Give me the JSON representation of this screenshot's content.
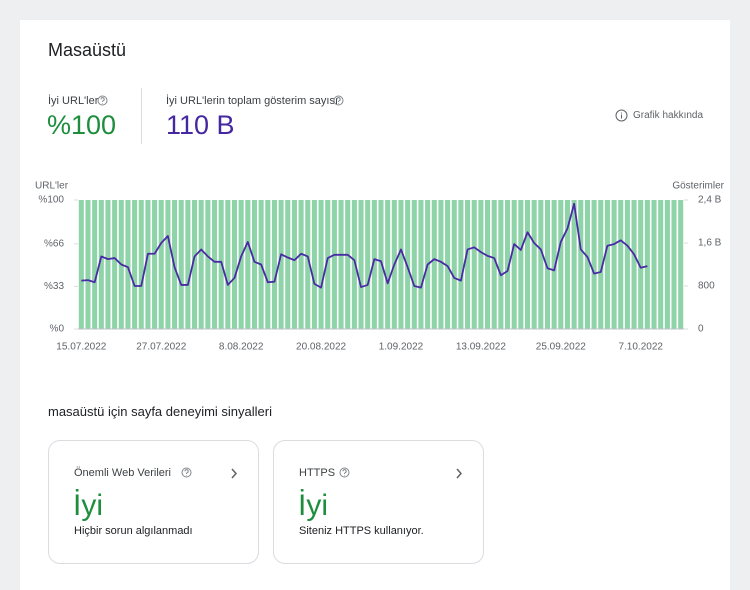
{
  "header": {
    "title": "Masaüstü"
  },
  "metrics": [
    {
      "label": "İyi URL'ler",
      "value": "%100",
      "color": "#1e8e3e"
    },
    {
      "label": "İyi URL'lerin toplam gösterim sayısı",
      "value": "110 B",
      "color": "#4527a0"
    }
  ],
  "about_link": "Grafik hakkında",
  "chart_data": {
    "type": "combo",
    "y_label": "URL'ler",
    "y2_label": "Gösterimler",
    "categories": [
      "15.07.2022",
      null,
      null,
      null,
      null,
      null,
      null,
      null,
      null,
      null,
      null,
      null,
      "27.07.2022",
      null,
      null,
      null,
      null,
      null,
      null,
      null,
      null,
      null,
      null,
      null,
      "8.08.2022",
      null,
      null,
      null,
      null,
      null,
      null,
      null,
      null,
      null,
      null,
      null,
      "20.08.2022",
      null,
      null,
      null,
      null,
      null,
      null,
      null,
      null,
      null,
      null,
      null,
      "1.09.2022",
      null,
      null,
      null,
      null,
      null,
      null,
      null,
      null,
      null,
      null,
      null,
      "13.09.2022",
      null,
      null,
      null,
      null,
      null,
      null,
      null,
      null,
      null,
      null,
      null,
      "25.09.2022",
      null,
      null,
      null,
      null,
      null,
      null,
      null,
      null,
      null,
      null,
      null,
      "7.10.2022",
      null,
      null,
      null,
      null,
      null,
      null
    ],
    "ylim": [
      0,
      100
    ],
    "yticks": [
      {
        "value": 0,
        "label": "%0"
      },
      {
        "value": 33,
        "label": "%33"
      },
      {
        "value": 66,
        "label": "%66"
      },
      {
        "value": 100,
        "label": "%100"
      }
    ],
    "y2lim": [
      0,
      2400
    ],
    "y2ticks": [
      0,
      800,
      {
        "value": 1600,
        "label": "1,6 B"
      },
      {
        "value": 2400,
        "label": "2,4 B"
      }
    ],
    "series": [
      {
        "type": "bar",
        "color": "#8fd4a8",
        "values": [
          100,
          100,
          100,
          100,
          100,
          100,
          100,
          100,
          100,
          100,
          100,
          100,
          100,
          100,
          100,
          100,
          100,
          100,
          100,
          100,
          100,
          100,
          100,
          100,
          100,
          100,
          100,
          100,
          100,
          100,
          100,
          100,
          100,
          100,
          100,
          100,
          100,
          100,
          100,
          100,
          100,
          100,
          100,
          100,
          100,
          100,
          100,
          100,
          100,
          100,
          100,
          100,
          100,
          100,
          100,
          100,
          100,
          100,
          100,
          100,
          100,
          100,
          100,
          100,
          100,
          100,
          100,
          100,
          100,
          100,
          100,
          100,
          100,
          100,
          100,
          100,
          100,
          100,
          100,
          100,
          100,
          100,
          100,
          100,
          100,
          100,
          100,
          100,
          100,
          100,
          100
        ]
      },
      {
        "type": "line",
        "axis": "y2",
        "color": "#4a2aa6",
        "values": [
          900,
          910,
          870,
          1350,
          1300,
          1320,
          1200,
          1150,
          800,
          800,
          1400,
          1400,
          1600,
          1730,
          1150,
          820,
          820,
          1350,
          1480,
          1350,
          1250,
          1250,
          820,
          950,
          1350,
          1620,
          1250,
          1200,
          870,
          880,
          1390,
          1330,
          1280,
          1400,
          1350,
          840,
          770,
          1320,
          1380,
          1380,
          1380,
          1280,
          780,
          820,
          1300,
          1260,
          850,
          1200,
          1480,
          1150,
          800,
          770,
          1200,
          1300,
          1250,
          1170,
          950,
          900,
          1480,
          1520,
          1430,
          1360,
          1320,
          1000,
          1080,
          1580,
          1470,
          1800,
          1600,
          1480,
          1130,
          1090,
          1620,
          1870,
          2330,
          1480,
          1340,
          1030,
          1060,
          1550,
          1580,
          1650,
          1550,
          1390,
          1140,
          1170,
          null,
          null,
          null,
          null,
          null
        ]
      }
    ]
  },
  "section": {
    "title": "masaüstü için sayfa deneyimi sinyalleri",
    "cards": [
      {
        "title": "Önemli Web Verileri",
        "status": "İyi",
        "description": "Hiçbir sorun algılanmadı"
      },
      {
        "title": "HTTPS",
        "status": "İyi",
        "description": "Siteniz HTTPS kullanıyor."
      }
    ]
  }
}
